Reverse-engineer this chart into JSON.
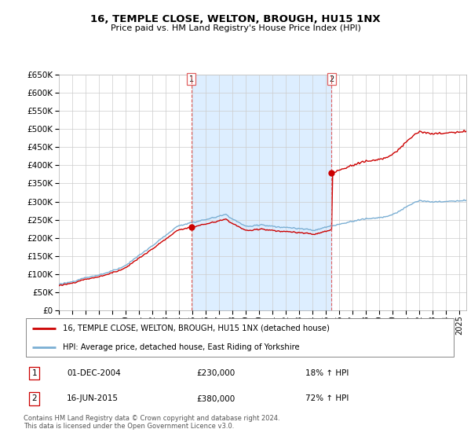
{
  "title": "16, TEMPLE CLOSE, WELTON, BROUGH, HU15 1NX",
  "subtitle": "Price paid vs. HM Land Registry's House Price Index (HPI)",
  "legend_property": "16, TEMPLE CLOSE, WELTON, BROUGH, HU15 1NX (detached house)",
  "legend_hpi": "HPI: Average price, detached house, East Riding of Yorkshire",
  "transaction1_date": "01-DEC-2004",
  "transaction1_price": 230000,
  "transaction1_hpi": "18% ↑ HPI",
  "transaction2_date": "16-JUN-2015",
  "transaction2_price": 380000,
  "transaction2_hpi": "72% ↑ HPI",
  "footer": "Contains HM Land Registry data © Crown copyright and database right 2024.\nThis data is licensed under the Open Government Licence v3.0.",
  "color_property": "#cc0000",
  "color_hpi": "#7bafd4",
  "color_transaction_line": "#e06060",
  "color_shade": "#ddeeff",
  "ylim": [
    0,
    650000
  ],
  "yticks": [
    0,
    50000,
    100000,
    150000,
    200000,
    250000,
    300000,
    350000,
    400000,
    450000,
    500000,
    550000,
    600000,
    650000
  ],
  "xlim_start": 1995.0,
  "xlim_end": 2025.5,
  "background_color": "#ffffff",
  "grid_color": "#cccccc"
}
